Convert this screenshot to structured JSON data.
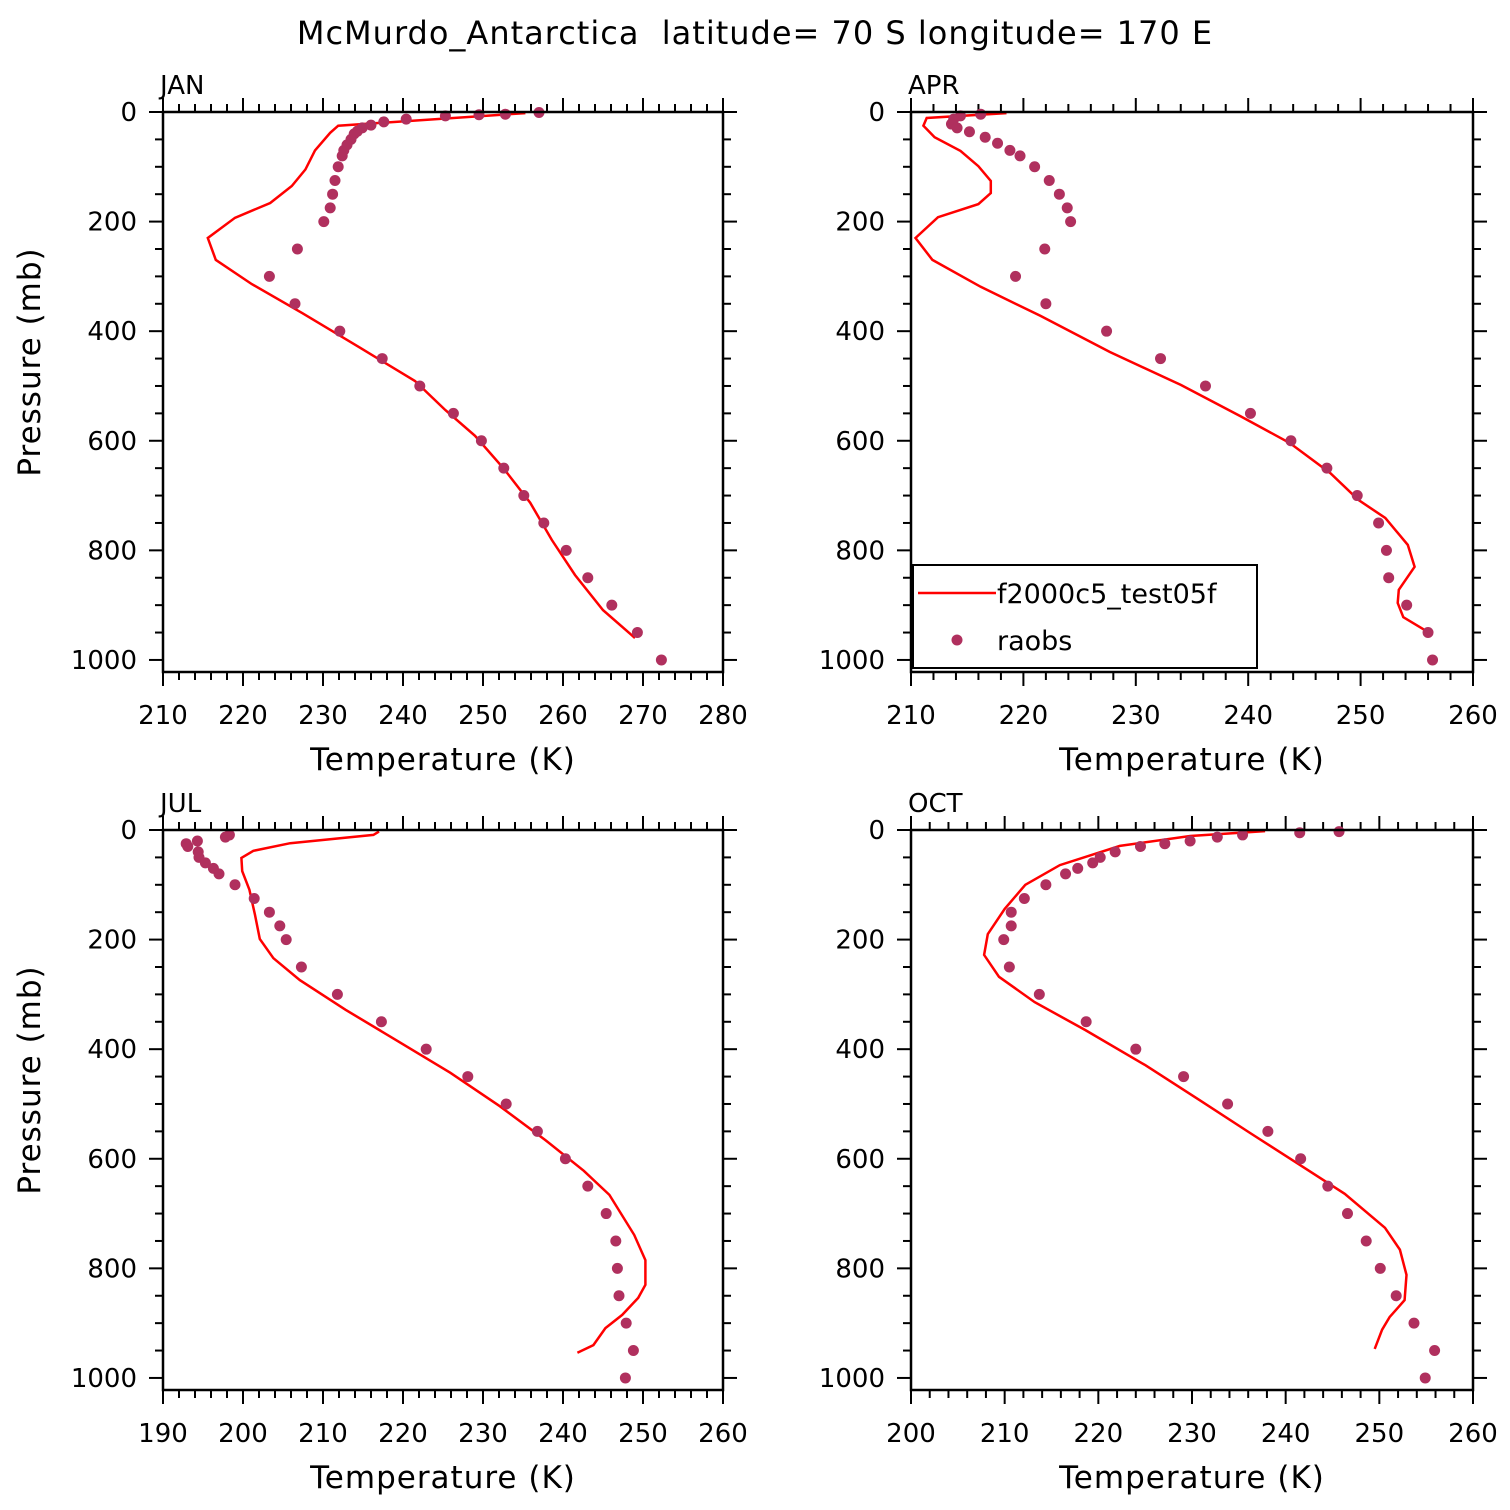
{
  "chart_data": {
    "type": "line",
    "title": "McMurdo_Antarctica  latitude= 70 S longitude= 170 E",
    "legend": {
      "placement": "bottom-left of APR panel",
      "entries": [
        "f2000c5_test05f",
        "raobs"
      ]
    },
    "colors": {
      "model": "#ff0000",
      "obs": "#b0305e"
    },
    "panels": [
      {
        "label": "JAN",
        "xlabel": "Temperature (K)",
        "ylabel": "Pressure (mb)",
        "xlim": [
          210,
          280
        ],
        "ylim": [
          1022,
          0
        ],
        "xticks": [
          "210",
          "220",
          "230",
          "240",
          "250",
          "260",
          "270",
          "280"
        ],
        "yticks": [
          "0",
          "200",
          "400",
          "600",
          "800",
          "1000"
        ],
        "series": [
          {
            "name": "f2000c5_test05f",
            "kind": "line",
            "T": [
              255.3,
              231.9,
              230.9,
              229.0,
              227.8,
              226.1,
              223.4,
              219.0,
              215.6,
              216.6,
              221.1,
              227.4,
              234.6,
              241.5,
              245.3,
              249.0,
              252.6,
              255.9,
              258.6,
              261.5,
              265.0,
              269.0
            ],
            "p": [
              2,
              25,
              38,
              70,
              105,
              135,
              166,
              193,
              230,
              270,
              314,
              367,
              430,
              491,
              544,
              591,
              651,
              713,
              781,
              845,
              909,
              960
            ]
          },
          {
            "name": "raobs",
            "kind": "points",
            "T": [
              257.0,
              252.8,
              249.5,
              245.3,
              240.4,
              237.6,
              236.0,
              234.9,
              234.3,
              233.9,
              233.5,
              233.0,
              232.6,
              232.4,
              231.9,
              231.5,
              231.2,
              230.9,
              230.1,
              226.8,
              223.3,
              226.5,
              232.1,
              237.4,
              242.1,
              246.3,
              249.8,
              252.6,
              255.1,
              257.6,
              260.4,
              263.1,
              266.1,
              269.3,
              272.3
            ],
            "p": [
              1,
              4,
              5,
              7,
              13,
              18,
              24,
              29,
              35,
              40,
              50,
              60,
              70,
              80,
              100,
              125,
              150,
              175,
              200,
              250,
              300,
              350,
              400,
              450,
              500,
              550,
              600,
              650,
              700,
              750,
              800,
              850,
              900,
              950,
              1000
            ]
          }
        ]
      },
      {
        "label": "APR",
        "xlabel": "Temperature (K)",
        "ylabel": "",
        "xlim": [
          210,
          260
        ],
        "ylim": [
          1022,
          0
        ],
        "xticks": [
          "210",
          "220",
          "230",
          "240",
          "250",
          "260"
        ],
        "yticks": [
          "0",
          "200",
          "400",
          "600",
          "800",
          "1000"
        ],
        "series": [
          {
            "name": "f2000c5_test05f",
            "kind": "line",
            "T": [
              218.5,
              211.4,
              211.1,
              212.1,
              214.4,
              216.0,
              217.1,
              217.1,
              216.0,
              212.4,
              210.4,
              211.9,
              216.2,
              221.5,
              227.7,
              234.0,
              239.3,
              243.7,
              247.3,
              249.8,
              252.2,
              254.2,
              254.8,
              253.4,
              253.3,
              253.8,
              256.4
            ],
            "p": [
              2,
              11,
              25,
              46,
              71,
              99,
              126,
              148,
              168,
              192,
              230,
              270,
              319,
              372,
              438,
              498,
              555,
              604,
              659,
              708,
              741,
              790,
              830,
              872,
              896,
              922,
              954
            ]
          },
          {
            "name": "raobs",
            "kind": "points",
            "T": [
              216.2,
              214.4,
              213.8,
              213.6,
              214.1,
              215.2,
              216.6,
              217.7,
              218.8,
              219.7,
              221.0,
              222.3,
              223.2,
              223.9,
              224.2,
              221.9,
              219.3,
              222.0,
              227.4,
              232.2,
              236.2,
              240.2,
              243.8,
              247.0,
              249.7,
              251.6,
              252.3,
              252.5,
              254.1,
              256.0,
              256.4
            ],
            "p": [
              4,
              7,
              13,
              22,
              29,
              36,
              46,
              57,
              70,
              80,
              100,
              125,
              150,
              175,
              200,
              250,
              300,
              350,
              400,
              450,
              500,
              550,
              600,
              650,
              700,
              750,
              800,
              850,
              900,
              950,
              1000
            ]
          }
        ]
      },
      {
        "label": "JUL",
        "xlabel": "Temperature (K)",
        "ylabel": "Pressure (mb)",
        "xlim": [
          190,
          260
        ],
        "ylim": [
          1022,
          0
        ],
        "xticks": [
          "190",
          "200",
          "210",
          "220",
          "230",
          "240",
          "250",
          "260"
        ],
        "yticks": [
          "0",
          "200",
          "400",
          "600",
          "800",
          "1000"
        ],
        "series": [
          {
            "name": "f2000c5_test05f",
            "kind": "line",
            "T": [
              217.0,
              216.3,
              205.9,
              201.3,
              199.8,
              199.9,
              200.8,
              201.5,
              202.1,
              203.8,
              207.1,
              212.8,
              219.1,
              225.9,
              232.1,
              237.8,
              242.6,
              245.8,
              248.9,
              250.3,
              250.3,
              249.4,
              247.4,
              245.3,
              243.8,
              241.8
            ],
            "p": [
              3,
              9,
              24,
              38,
              51,
              75,
              109,
              155,
              199,
              234,
              274,
              328,
              383,
              443,
              504,
              566,
              622,
              666,
              739,
              785,
              830,
              854,
              885,
              909,
              940,
              954
            ]
          },
          {
            "name": "raobs",
            "kind": "points",
            "T": [
              198.3,
              197.8,
              194.3,
              192.9,
              193.1,
              194.4,
              194.5,
              195.3,
              196.3,
              197.0,
              199.0,
              201.4,
              203.3,
              204.6,
              205.4,
              207.3,
              211.8,
              217.3,
              222.9,
              228.1,
              232.9,
              236.8,
              240.3,
              243.1,
              245.4,
              246.6,
              246.8,
              247.0,
              247.9,
              248.8,
              247.8
            ],
            "p": [
              9,
              13,
              20,
              25,
              30,
              40,
              50,
              60,
              70,
              80,
              100,
              125,
              150,
              175,
              200,
              250,
              300,
              350,
              400,
              450,
              500,
              550,
              600,
              650,
              700,
              750,
              800,
              850,
              900,
              950,
              1000
            ]
          }
        ]
      },
      {
        "label": "OCT",
        "xlabel": "Temperature (K)",
        "ylabel": "",
        "xlim": [
          200,
          260
        ],
        "ylim": [
          1022,
          0
        ],
        "xticks": [
          "200",
          "210",
          "220",
          "230",
          "240",
          "250",
          "260"
        ],
        "yticks": [
          "0",
          "200",
          "400",
          "600",
          "800",
          "1000"
        ],
        "series": [
          {
            "name": "f2000c5_test05f",
            "kind": "line",
            "T": [
              237.8,
              229.8,
              222.3,
              215.9,
              212.2,
              210.0,
              208.2,
              207.8,
              209.4,
              213.2,
              218.6,
              225.0,
              230.8,
              236.2,
              241.5,
              246.3,
              250.6,
              252.2,
              252.9,
              252.7,
              251.1,
              250.3,
              249.5
            ],
            "p": [
              2,
              11,
              29,
              64,
              100,
              144,
              190,
              228,
              268,
              314,
              365,
              429,
              493,
              553,
              611,
              664,
              726,
              766,
              812,
              858,
              889,
              912,
              947
            ]
          },
          {
            "name": "raobs",
            "kind": "points",
            "T": [
              245.7,
              241.5,
              235.4,
              232.7,
              229.8,
              227.1,
              224.5,
              221.8,
              220.2,
              219.4,
              217.8,
              216.5,
              214.4,
              212.1,
              210.7,
              210.7,
              209.9,
              210.5,
              213.7,
              218.7,
              224.0,
              229.1,
              233.8,
              238.1,
              241.6,
              244.5,
              246.6,
              248.6,
              250.1,
              251.8,
              253.7,
              255.9,
              254.9
            ],
            "p": [
              3,
              5,
              9,
              13,
              20,
              25,
              30,
              40,
              50,
              60,
              70,
              80,
              100,
              125,
              150,
              175,
              200,
              250,
              300,
              350,
              400,
              450,
              500,
              550,
              600,
              650,
              700,
              750,
              800,
              850,
              900,
              950,
              1000
            ]
          }
        ]
      }
    ]
  }
}
